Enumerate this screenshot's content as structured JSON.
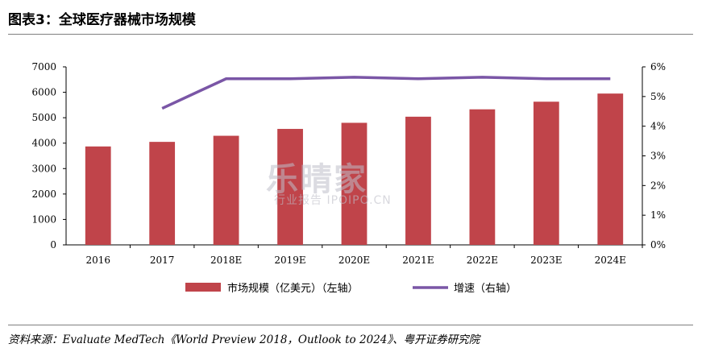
{
  "header": {
    "title": "图表3：全球医疗器械市场规模"
  },
  "watermark": {
    "cn": "乐晴家",
    "en": "行业报告 IPOIPO.CN"
  },
  "source": "资料来源：Evaluate MedTech《World Preview 2018，Outlook to 2024》、粤开证券研究院",
  "chart_data": {
    "type": "bar",
    "categories": [
      "2016",
      "2017",
      "2018E",
      "2019E",
      "2020E",
      "2021E",
      "2022E",
      "2023E",
      "2024E"
    ],
    "series": [
      {
        "name": "市场规模（亿美元）（左轴）",
        "type": "bar",
        "axis": "left",
        "color": "#c0444a",
        "values": [
          3870,
          4050,
          4290,
          4560,
          4800,
          5040,
          5330,
          5630,
          5950
        ]
      },
      {
        "name": "增速（右轴）",
        "type": "line",
        "axis": "right",
        "color": "#7a56a6",
        "values": [
          null,
          4.6,
          5.6,
          5.6,
          5.65,
          5.6,
          5.65,
          5.6,
          5.6
        ]
      }
    ],
    "y_left": {
      "min": 0,
      "max": 7000,
      "ticks": [
        "0",
        "1000",
        "2000",
        "3000",
        "4000",
        "5000",
        "6000",
        "7000"
      ]
    },
    "y_right": {
      "min": 0,
      "max": 6,
      "ticks": [
        "0%",
        "1%",
        "2%",
        "3%",
        "4%",
        "5%",
        "6%"
      ]
    },
    "grid": false,
    "legend_position": "bottom"
  }
}
